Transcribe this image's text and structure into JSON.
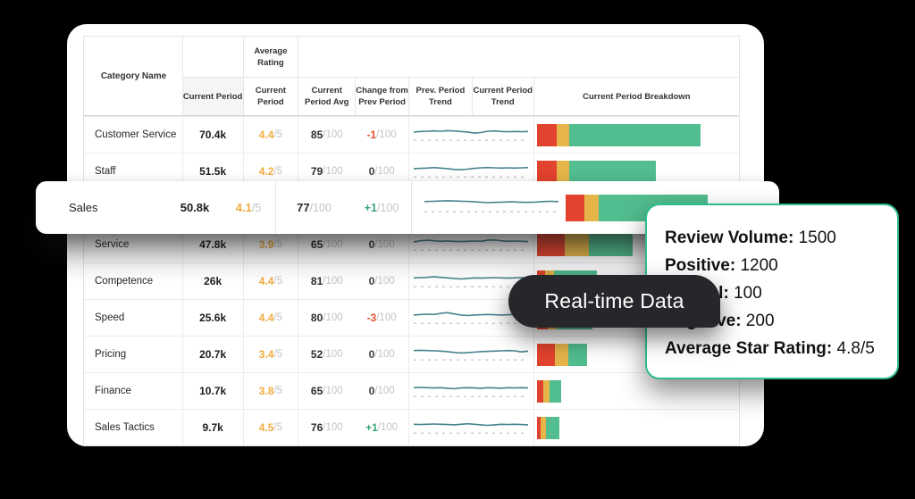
{
  "colors": {
    "background": "#000000",
    "panel": "#ffffff",
    "bar_red": "#E2432E",
    "bar_yellow": "#E5B54A",
    "bar_green": "#52BD8F",
    "rating_amber": "#EFAC3F",
    "change_negative": "#E2502F",
    "change_positive": "#37A477",
    "spark_line": "#47828F",
    "spark_dashed": "#cccccc",
    "callout_border": "#2EBD8C",
    "pill_background": "#26262B"
  },
  "table": {
    "header": {
      "category": "Category Name",
      "group_average_rating": "Average Rating",
      "col_volume": "Current Period",
      "col_rating": "Current Period",
      "col_avg": "Current Period Avg",
      "col_change": "Change from Prev Period",
      "col_prev_trend": "Prev. Period Trend",
      "col_curr_trend": "Current Period Trend",
      "col_breakdown": "Current Period Breakdown"
    },
    "suffix_rating": "/5",
    "suffix_score": "/100",
    "rows": [
      {
        "name": "Customer Service",
        "volume": "70.4k",
        "rating": "4.4",
        "avg": "85",
        "change": "-1",
        "change_type": "neg",
        "trend": [
          0,
          0.1,
          0.15,
          0.2,
          0.15,
          0.25,
          0.2,
          0.1,
          0,
          -0.2,
          -0.1,
          0.15,
          0.2,
          0.1,
          0.05,
          0.1,
          0.05,
          0.1
        ],
        "bar": {
          "red": 22,
          "yellow": 14,
          "green": 147
        }
      },
      {
        "name": "Staff",
        "volume": "51.5k",
        "rating": "4.2",
        "avg": "79",
        "change": "0",
        "change_type": "zero",
        "trend": [
          0,
          0.05,
          0.1,
          0.2,
          0.1,
          0,
          -0.15,
          -0.2,
          -0.1,
          0.05,
          0.15,
          0.2,
          0.15,
          0.1,
          0.15,
          0.1,
          0.15,
          0.2
        ],
        "bar": {
          "red": 22,
          "yellow": 14,
          "green": 97
        }
      },
      {
        "placeholder": true
      },
      {
        "name": "Service",
        "volume": "47.8k",
        "rating": "3.9",
        "avg": "65",
        "change": "0",
        "change_type": "zero",
        "trend": [
          0,
          0.2,
          0.3,
          0.2,
          0.1,
          0.15,
          0.1,
          0.05,
          0.1,
          0.15,
          0.1,
          0.3,
          0.35,
          0.2,
          0.1,
          0.15,
          0.1,
          0.05
        ],
        "bar": {
          "red": 31,
          "yellow": 27,
          "green": 49
        }
      },
      {
        "name": "Competence",
        "volume": "26k",
        "rating": "4.4",
        "avg": "81",
        "change": "0",
        "change_type": "zero",
        "trend": [
          0.1,
          0.15,
          0.2,
          0.3,
          0.2,
          0.1,
          0,
          -0.1,
          0,
          0.1,
          0.05,
          0.1,
          0.15,
          0.1,
          0.05,
          0.1,
          0.15,
          0.1
        ],
        "bar": {
          "red": 9,
          "yellow": 10,
          "green": 48
        }
      },
      {
        "name": "Speed",
        "volume": "25.6k",
        "rating": "4.4",
        "avg": "80",
        "change": "-3",
        "change_type": "neg",
        "trend": [
          0,
          0.1,
          0.15,
          0.1,
          0.3,
          0.45,
          0.2,
          0,
          -0.1,
          0,
          0.05,
          0.1,
          0.05,
          0,
          0.05,
          0.1,
          0.05,
          0
        ],
        "bar": {
          "red": 12,
          "yellow": 10,
          "green": 40
        }
      },
      {
        "name": "Pricing",
        "volume": "20.7k",
        "rating": "3.4",
        "avg": "52",
        "change": "0",
        "change_type": "zero",
        "trend": [
          0.2,
          0.25,
          0.2,
          0.15,
          0.1,
          0,
          -0.15,
          -0.25,
          -0.2,
          -0.1,
          0,
          0.05,
          0.1,
          0.15,
          0.2,
          0.15,
          -0.05,
          0.1
        ],
        "bar": {
          "red": 20,
          "yellow": 15,
          "green": 21
        }
      },
      {
        "name": "Finance",
        "volume": "10.7k",
        "rating": "3.8",
        "avg": "65",
        "change": "0",
        "change_type": "zero",
        "trend": [
          0.1,
          0.15,
          0.1,
          0.05,
          0.1,
          0,
          -0.1,
          0.05,
          0.1,
          0.05,
          0,
          0.1,
          0.05,
          0,
          0.1,
          0.05,
          0.1,
          0.05
        ],
        "bar": {
          "red": 7,
          "yellow": 7,
          "green": 13
        }
      },
      {
        "name": "Sales Tactics",
        "volume": "9.7k",
        "rating": "4.5",
        "avg": "76",
        "change": "+1",
        "change_type": "pos",
        "trend": [
          0.1,
          0.05,
          0.1,
          0.15,
          0.1,
          0.05,
          0,
          0.1,
          0.2,
          0.1,
          0,
          -0.1,
          0,
          0.1,
          0.05,
          0.1,
          0.05,
          0
        ],
        "bar": {
          "red": 4,
          "yellow": 6,
          "green": 15
        }
      }
    ]
  },
  "floating_row": {
    "name": "Sales",
    "volume": "50.8k",
    "rating": "4.1",
    "rating_suffix": "/5",
    "avg": "77",
    "avg_suffix": "/100",
    "change": "+1",
    "change_suffix": "/100",
    "change_type": "pos",
    "trend": [
      0.1,
      0.15,
      0.2,
      0.25,
      0.2,
      0.15,
      0.1,
      0,
      -0.1,
      -0.05,
      0,
      0.05,
      0,
      -0.05,
      0,
      0.1,
      0.15,
      0.1
    ],
    "bar": {
      "red": 21,
      "yellow": 16,
      "green": 122
    }
  },
  "callout": {
    "lines": [
      {
        "label": "Review Volume:",
        "value": "1500"
      },
      {
        "label": "Positive:",
        "value": "1200"
      },
      {
        "label": "Neutral:",
        "value": "100"
      },
      {
        "label": "Negative:",
        "value": "200"
      },
      {
        "label": "Average Star Rating:",
        "value": "4.8/5"
      }
    ]
  },
  "pill": {
    "label": "Real-time Data"
  }
}
